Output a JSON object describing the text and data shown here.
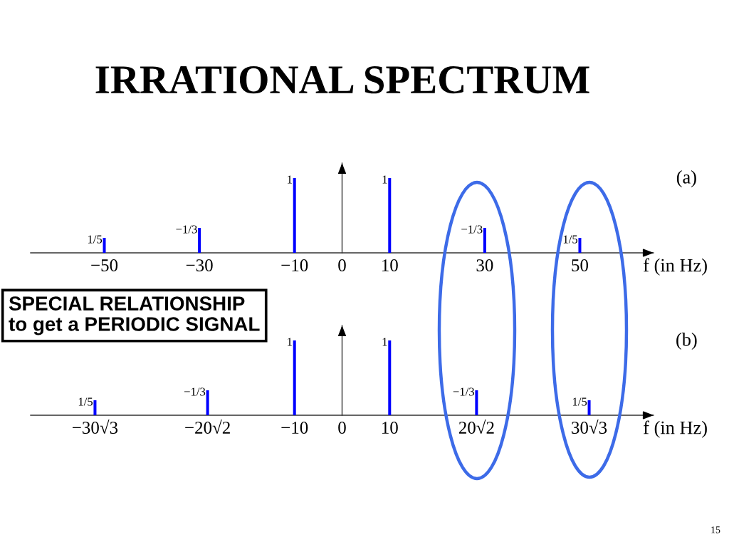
{
  "chart_data": [
    {
      "type": "bar",
      "title": "IRRATIONAL SPECTRUM",
      "x": [
        -50,
        -30,
        -10,
        10,
        30,
        50
      ],
      "values": [
        0.2,
        0.333,
        1,
        1,
        0.333,
        0.2
      ],
      "value_labels": [
        "1/5",
        null,
        "1",
        "1",
        null,
        "1/5"
      ],
      "color": "#0000ff",
      "xlim": [
        -65.5,
        65.5
      ],
      "xticks": [
        {
          "value": -50,
          "label": "−50"
        },
        {
          "value": -30,
          "label": "−30"
        },
        {
          "value": -10,
          "label": "−10"
        },
        0,
        10,
        30,
        50
      ],
      "xlabel": "f (in Hz)",
      "tick_labels": "x",
      "annotations": [
        "(a)",
        {
          "text": "−1/3",
          "x": -30,
          "y": 0.333
        },
        {
          "text": "−1/3",
          "x": 30,
          "y": 0.333
        }
      ]
    },
    {
      "type": "bar",
      "x": [
        -51.96,
        -28.28,
        -10,
        10,
        28.28,
        51.96
      ],
      "values": [
        0.2,
        0.333,
        1,
        1,
        0.333,
        0.2
      ],
      "value_labels": [
        "1/5",
        null,
        "1",
        "1",
        null,
        "1/5"
      ],
      "color": "#0000ff",
      "xlim": [
        -65.5,
        65.5
      ],
      "xticks": [
        {
          "value": -51.96,
          "label": "−30√3"
        },
        {
          "value": -28.28,
          "label": "−20√2"
        },
        {
          "value": -10,
          "label": "−10"
        },
        0,
        10,
        {
          "value": 28.28,
          "label": "20√2"
        },
        {
          "value": 51.96,
          "label": "30√3"
        }
      ],
      "xlabel": "f (in Hz)",
      "tick_labels": "x",
      "annotations": [
        "(b)",
        "SPECIAL RELATIONSHIP\nto get a PERIODIC SIGNAL",
        "15",
        {
          "text": "−1/3",
          "x": -28.28,
          "y": 0.333
        },
        {
          "text": "−1/3",
          "x": 28.28,
          "y": 0.333
        }
      ]
    }
  ]
}
